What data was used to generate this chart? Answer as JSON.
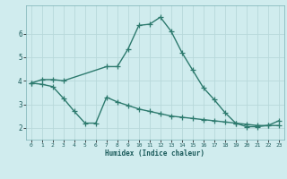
{
  "line1_x": [
    0,
    1,
    2,
    3,
    7,
    8,
    9,
    10,
    11,
    12,
    13,
    14,
    15,
    16,
    17,
    18,
    19,
    20,
    21,
    22,
    23
  ],
  "line1_y": [
    3.9,
    4.05,
    4.05,
    4.0,
    4.6,
    4.6,
    5.35,
    6.35,
    6.4,
    6.7,
    6.1,
    5.2,
    4.45,
    3.7,
    3.2,
    2.65,
    2.2,
    2.05,
    2.05,
    2.1,
    2.3
  ],
  "line2_x": [
    0,
    1,
    2,
    3,
    4,
    5,
    6,
    7,
    8,
    9,
    10,
    11,
    12,
    13,
    14,
    15,
    16,
    17,
    18,
    19,
    20,
    21,
    22,
    23
  ],
  "line2_y": [
    3.9,
    3.85,
    3.75,
    3.25,
    2.7,
    2.2,
    2.2,
    3.3,
    3.1,
    2.95,
    2.8,
    2.7,
    2.6,
    2.5,
    2.45,
    2.4,
    2.35,
    2.3,
    2.25,
    2.2,
    2.15,
    2.1,
    2.1,
    2.1
  ],
  "line_color": "#2d7a6e",
  "bg_color": "#d0ecee",
  "grid_color": "#b8d8da",
  "xlabel": "Humidex (Indice chaleur)",
  "xlim": [
    -0.5,
    23.5
  ],
  "ylim": [
    1.5,
    7.2
  ],
  "xticks": [
    0,
    1,
    2,
    3,
    4,
    5,
    6,
    7,
    8,
    9,
    10,
    11,
    12,
    13,
    14,
    15,
    16,
    17,
    18,
    19,
    20,
    21,
    22,
    23
  ],
  "yticks": [
    2,
    3,
    4,
    5,
    6
  ],
  "marker": "+",
  "markersize": 4,
  "linewidth": 1.0
}
